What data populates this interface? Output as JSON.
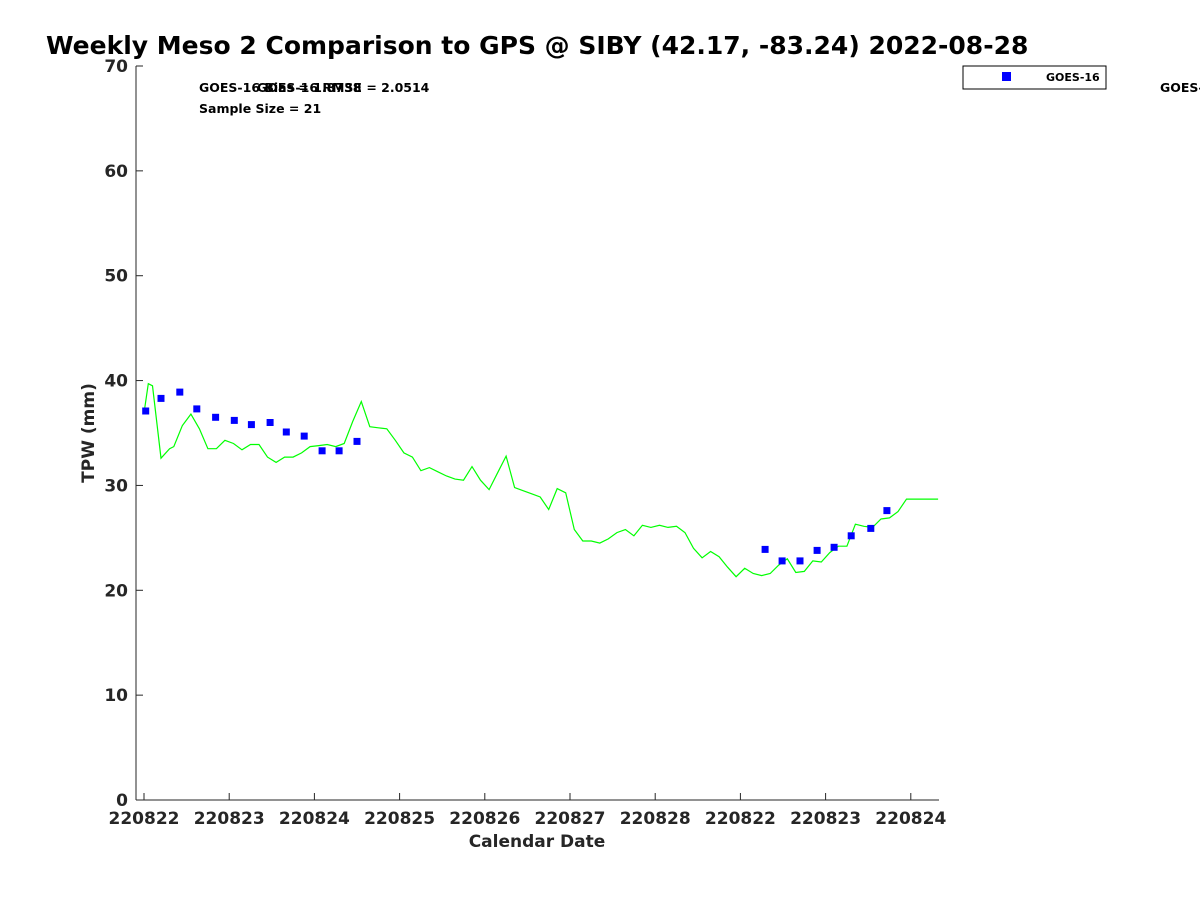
{
  "chart_data": {
    "type": "line",
    "title": "Weekly Meso 2 Comparison to GPS @ SIBY (42.17, -83.24) 2022-08-28",
    "xlabel": "Calendar Date",
    "ylabel": "TPW (mm)",
    "ylim": [
      0,
      70
    ],
    "yticks": [
      "0",
      "10",
      "20",
      "30",
      "40",
      "50",
      "60",
      "70"
    ],
    "xticks": [
      "220822",
      "220823",
      "220824",
      "220825",
      "220826",
      "220827",
      "220828",
      "220822",
      "220823",
      "220824"
    ],
    "grid": false,
    "legend_position": "top-right",
    "stats": {
      "overlap_line": "GOES-16 Bias = 1.8738",
      "rmse": "GOES-16 RMSE = 2.0514",
      "sample": "Sample Size = 21",
      "offscreen": "GOES-"
    },
    "series": [
      {
        "name": "",
        "style": "line",
        "color": "#00ff00",
        "x": [
          0.0,
          0.05,
          0.1,
          0.2,
          0.3,
          0.35,
          0.45,
          0.55,
          0.65,
          0.75,
          0.85,
          0.95,
          1.05,
          1.15,
          1.25,
          1.35,
          1.45,
          1.55,
          1.65,
          1.75,
          1.85,
          1.95,
          2.05,
          2.15,
          2.25,
          2.35,
          2.45,
          2.55,
          2.65,
          2.75,
          2.85,
          2.95,
          3.05,
          3.15,
          3.25,
          3.35,
          3.45,
          3.55,
          3.65,
          3.75,
          3.85,
          3.95,
          4.05,
          4.15,
          4.25,
          4.35,
          4.45,
          4.55,
          4.65,
          4.75,
          4.85,
          4.95,
          5.05,
          5.15,
          5.25,
          5.35,
          5.45,
          5.55,
          5.65,
          5.75,
          5.85,
          5.95,
          6.05,
          6.15,
          6.25,
          6.35,
          6.45,
          6.55,
          6.65,
          6.75,
          6.85,
          6.95,
          7.05,
          7.15,
          7.25,
          7.35,
          7.45,
          7.55,
          7.65,
          7.75,
          7.85,
          7.95,
          8.05,
          8.15,
          8.25,
          8.35,
          8.45,
          8.55,
          8.65,
          8.75,
          8.85,
          8.95,
          9.05,
          9.15,
          9.25,
          9.32
        ],
        "y": [
          36.9,
          39.7,
          39.5,
          32.6,
          33.5,
          33.7,
          35.7,
          36.8,
          35.4,
          33.5,
          33.5,
          34.3,
          34.0,
          33.4,
          33.9,
          33.9,
          32.7,
          32.2,
          32.7,
          32.7,
          33.1,
          33.7,
          33.8,
          33.9,
          33.7,
          34.0,
          36.1,
          38.0,
          35.6,
          35.5,
          35.4,
          34.3,
          33.1,
          32.7,
          31.4,
          31.7,
          31.3,
          30.9,
          30.6,
          30.5,
          31.8,
          30.5,
          29.6,
          31.2,
          32.8,
          29.8,
          29.5,
          29.2,
          28.9,
          27.7,
          29.7,
          29.3,
          25.8,
          24.7,
          24.7,
          24.5,
          24.9,
          25.5,
          25.8,
          25.2,
          26.2,
          26.0,
          26.2,
          26.0,
          26.1,
          25.5,
          24.0,
          23.1,
          23.7,
          23.2,
          22.2,
          21.3,
          22.1,
          21.6,
          21.4,
          21.6,
          22.4,
          23.0,
          21.7,
          21.8,
          22.8,
          22.7,
          23.6,
          24.2,
          24.2,
          26.3,
          26.1,
          26.0,
          26.8,
          26.9,
          27.5,
          28.7,
          28.7,
          28.7,
          28.7,
          28.7
        ]
      },
      {
        "name": "GOES-16",
        "style": "marker",
        "color": "#0000ff",
        "x": [
          0.02,
          0.2,
          0.42,
          0.62,
          0.84,
          1.06,
          1.26,
          1.48,
          1.67,
          1.88,
          2.09,
          2.29,
          2.5,
          7.29,
          7.49,
          7.7,
          7.9,
          8.1,
          8.3,
          8.53,
          8.72
        ],
        "y": [
          37.1,
          38.3,
          38.9,
          37.3,
          36.5,
          36.2,
          35.8,
          36.0,
          35.1,
          34.7,
          33.3,
          33.3,
          34.2,
          23.9,
          22.8,
          22.8,
          23.8,
          24.1,
          25.2,
          25.9,
          27.6
        ]
      }
    ]
  }
}
